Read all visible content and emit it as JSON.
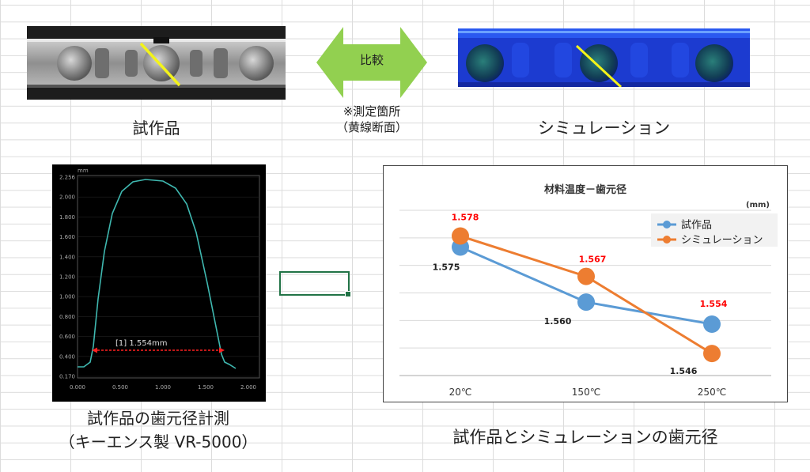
{
  "photo_label": "試作品",
  "simulation_label": "シミュレーション",
  "compare_arrow_label": "比較",
  "measurement_note": {
    "line1": "※測定箇所",
    "line2": "（黄線断面）"
  },
  "profile_caption": {
    "line1": "試作品の歯元径計測",
    "line2": "（キーエンス製 VR-5000）"
  },
  "profile_graph": {
    "unit": "mm",
    "y_ticks": [
      "2.256",
      "2.000",
      "1.800",
      "1.600",
      "1.400",
      "1.200",
      "1.000",
      "0.800",
      "0.600",
      "0.400",
      "0.170"
    ],
    "x_ticks": [
      "0.000",
      "0.500",
      "1.000",
      "1.500",
      "2.000"
    ],
    "measurement_label": "[1] 1.554mm",
    "colors": {
      "profile": "#3fb8b0",
      "measure": "#ff2020"
    }
  },
  "chart_caption": "試作品とシミュレーションの歯元径",
  "chart_data": {
    "type": "line",
    "title": "材料温度－歯元径",
    "unit_label": "(mm)",
    "categories": [
      "20℃",
      "150℃",
      "250℃"
    ],
    "ylim": [
      1.54,
      1.585
    ],
    "grid": true,
    "legend_position": "top-right",
    "series": [
      {
        "name": "試作品",
        "values": [
          1.575,
          1.56,
          1.554
        ],
        "labels": [
          "1.575",
          "1.560",
          ""
        ],
        "color": "#5b9bd5",
        "label_color": "#222222"
      },
      {
        "name": "シミュレーション",
        "values": [
          1.578,
          1.567,
          1.546
        ],
        "labels": [
          "1.578",
          "1.567",
          "1.546"
        ],
        "color": "#ed7d31",
        "label_color": "#ff0000"
      }
    ],
    "extra_labels": [
      {
        "series": 0,
        "index": 2,
        "text": "1.554",
        "color": "#ff0000"
      },
      {
        "series": 1,
        "index": 2,
        "text": "1.546",
        "color": "#222222"
      }
    ]
  }
}
